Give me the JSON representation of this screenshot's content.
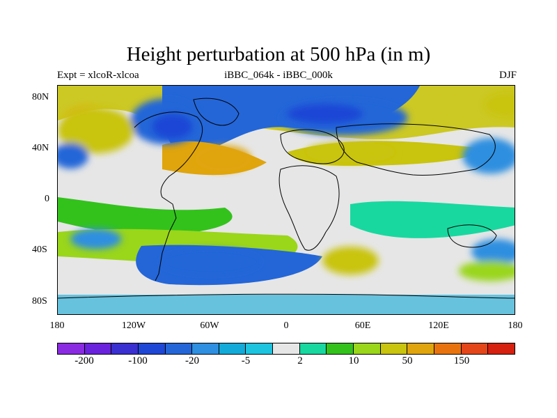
{
  "header": {
    "title": "Height perturbation at 500 hPa (in m)",
    "left": "Expt = xlcoR-xlcoa",
    "center": "iBBC_064k - iBBC_000k",
    "right": "DJF"
  },
  "axes": {
    "y_labels": [
      "80N",
      "40N",
      "0",
      "40S",
      "80S"
    ],
    "x_labels": [
      "180",
      "120W",
      "60W",
      "0",
      "60E",
      "120E",
      "180"
    ]
  },
  "colorbar": {
    "colors": [
      "#8a2be2",
      "#6a22dd",
      "#3a2fd0",
      "#1f47d6",
      "#2466d8",
      "#2f8fe0",
      "#12aad8",
      "#1cc4e0",
      "#e6e6e6",
      "#18d8a0",
      "#33c21c",
      "#9ad61a",
      "#c9c40e",
      "#e0a50c",
      "#e8730e",
      "#e4461a",
      "#d62010"
    ],
    "labels": [
      "-200",
      "-100",
      "-20",
      "-5",
      "2",
      "10",
      "50",
      "150"
    ]
  },
  "map_fields": [
    {
      "level": "neg_mid",
      "lon": -95,
      "lat": 62,
      "rx": 28,
      "ry": 18,
      "color": "#2466d8"
    },
    {
      "level": "neg_strong",
      "lon": -90,
      "lat": 58,
      "rx": 16,
      "ry": 10,
      "color": "#1f47d6"
    },
    {
      "level": "neg_mid",
      "lon": 45,
      "lat": 65,
      "rx": 50,
      "ry": 14,
      "color": "#2466d8"
    },
    {
      "level": "neg_strong",
      "lon": 30,
      "lat": 68,
      "rx": 30,
      "ry": 8,
      "color": "#1f47d6"
    },
    {
      "level": "pos_strong",
      "lon": -155,
      "lat": 60,
      "rx": 22,
      "ry": 14,
      "color": "#e0a50c"
    },
    {
      "level": "pos_mid",
      "lon": -150,
      "lat": 55,
      "rx": 30,
      "ry": 18,
      "color": "#c9c40e"
    },
    {
      "level": "pos_mid",
      "lon": -50,
      "lat": 33,
      "rx": 22,
      "ry": 10,
      "color": "#e0a50c"
    },
    {
      "level": "pos_mid",
      "lon": 50,
      "lat": 38,
      "rx": 35,
      "ry": 8,
      "color": "#c9c40e"
    },
    {
      "level": "neg_mid",
      "lon": 160,
      "lat": 35,
      "rx": 22,
      "ry": 14,
      "color": "#2f8fe0"
    },
    {
      "level": "neg_mid",
      "lon": -170,
      "lat": 35,
      "rx": 14,
      "ry": 10,
      "color": "#2466d8"
    },
    {
      "level": "pos_mid",
      "lon": 175,
      "lat": 75,
      "rx": 20,
      "ry": 10,
      "color": "#c9c40e"
    },
    {
      "level": "pos_mid",
      "lon": 50,
      "lat": -47,
      "rx": 22,
      "ry": 11,
      "color": "#c9c40e"
    },
    {
      "level": "neg_mid",
      "lon": -60,
      "lat": -48,
      "rx": 40,
      "ry": 10,
      "color": "#2466d8"
    },
    {
      "level": "neg_mid",
      "lon": 165,
      "lat": -40,
      "rx": 20,
      "ry": 10,
      "color": "#2f8fe0"
    },
    {
      "level": "pos_mid",
      "lon": 160,
      "lat": -55,
      "rx": 25,
      "ry": 8,
      "color": "#9ad61a"
    },
    {
      "level": "neg_mid",
      "lon": -150,
      "lat": -30,
      "rx": 20,
      "ry": 8,
      "color": "#2f8fe0"
    }
  ]
}
